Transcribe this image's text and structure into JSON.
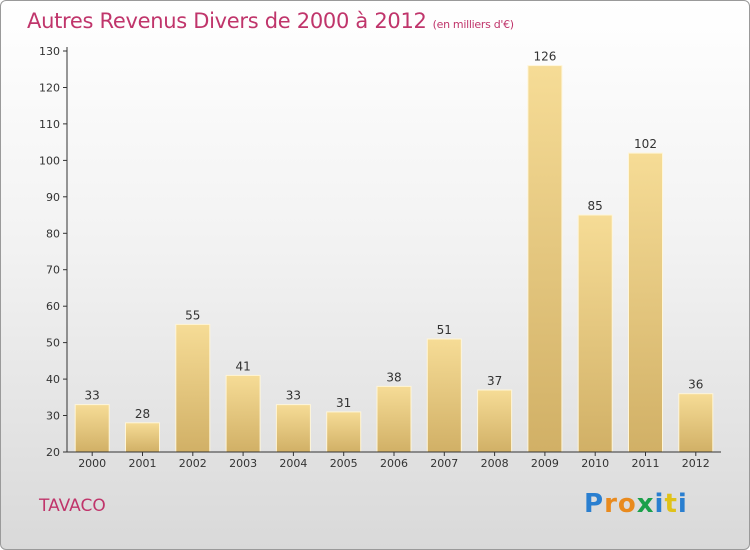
{
  "header": {
    "title": "Autres Revenus Divers de 2000 à 2012",
    "subtitle": "(en milliers d'€)"
  },
  "footer": {
    "place": "TAVACO",
    "logo_letters": [
      "P",
      "r",
      "o",
      "x",
      "i",
      "t",
      "i"
    ],
    "logo_colors": [
      "#2a7fd0",
      "#e98a1d",
      "#e98a1d",
      "#1aa04a",
      "#2a7fd0",
      "#e0c219",
      "#2a7fd0"
    ]
  },
  "colors": {
    "bar_light": "#f6dc96",
    "bar_dark": "#d1b066",
    "axis": "#333333"
  },
  "chart_data": {
    "type": "bar",
    "title": "Autres Revenus Divers de 2000 à 2012",
    "xlabel": "",
    "ylabel": "",
    "categories": [
      "2000",
      "2001",
      "2002",
      "2003",
      "2004",
      "2005",
      "2006",
      "2007",
      "2008",
      "2009",
      "2010",
      "2011",
      "2012"
    ],
    "values": [
      33,
      28,
      55,
      41,
      33,
      31,
      38,
      51,
      37,
      126,
      85,
      102,
      36
    ],
    "ylim": [
      20,
      130
    ],
    "yticks": [
      20,
      30,
      40,
      50,
      60,
      70,
      80,
      90,
      100,
      110,
      120,
      130
    ],
    "grid": false,
    "legend": "none"
  }
}
